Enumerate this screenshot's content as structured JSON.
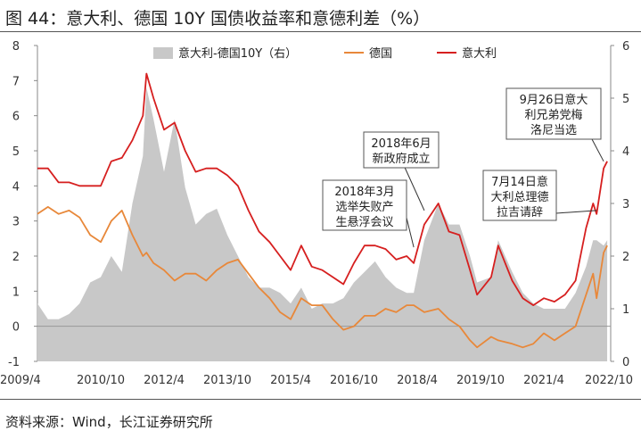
{
  "title": "图 44：意大利、德国 10Y 国债收益率和意德利差（%）",
  "source": "资料来源：Wind，长江证券研究所",
  "chart_data": {
    "type": "line",
    "title": "图 44：意大利、德国 10Y 国债收益率和意德利差（%）",
    "x_tick_labels": [
      "2009/4",
      "2010/10",
      "2012/4",
      "2013/10",
      "2015/4",
      "2016/10",
      "2018/4",
      "2019/10",
      "2021/4",
      "2022/10"
    ],
    "x_range": [
      "2009-04",
      "2022-11"
    ],
    "y_left": {
      "range": [
        -1,
        8
      ],
      "ticks": [
        -1,
        0,
        1,
        2,
        3,
        4,
        5,
        6,
        7,
        8
      ]
    },
    "y_right": {
      "range": [
        0,
        6
      ],
      "ticks": [
        0,
        1,
        2,
        3,
        4,
        5,
        6
      ]
    },
    "legend_position": "top",
    "grid": false,
    "x": [
      "2009-04",
      "2009-07",
      "2009-10",
      "2010-01",
      "2010-04",
      "2010-07",
      "2010-10",
      "2011-01",
      "2011-04",
      "2011-07",
      "2011-10",
      "2011-11",
      "2012-01",
      "2012-04",
      "2012-07",
      "2012-10",
      "2013-01",
      "2013-04",
      "2013-07",
      "2013-10",
      "2014-01",
      "2014-04",
      "2014-07",
      "2014-10",
      "2015-01",
      "2015-04",
      "2015-07",
      "2015-10",
      "2016-01",
      "2016-04",
      "2016-07",
      "2016-10",
      "2017-01",
      "2017-04",
      "2017-07",
      "2017-10",
      "2018-01",
      "2018-03",
      "2018-06",
      "2018-10",
      "2019-01",
      "2019-04",
      "2019-07",
      "2019-09",
      "2020-01",
      "2020-03",
      "2020-07",
      "2020-10",
      "2021-01",
      "2021-04",
      "2021-07",
      "2021-10",
      "2022-01",
      "2022-04",
      "2022-06",
      "2022-07",
      "2022-09",
      "2022-10"
    ],
    "series": [
      {
        "name": "意大利-德国10Y（右）",
        "axis": "right",
        "color": "#c8c8c8",
        "style": "area",
        "values": [
          1.1,
          0.8,
          0.8,
          0.9,
          1.1,
          1.5,
          1.6,
          2.0,
          1.7,
          3.0,
          3.9,
          5.2,
          4.6,
          3.6,
          4.6,
          3.3,
          2.6,
          2.8,
          2.9,
          2.4,
          2.0,
          1.6,
          1.4,
          1.4,
          1.3,
          1.1,
          1.4,
          1.0,
          1.1,
          1.1,
          1.2,
          1.5,
          1.7,
          1.9,
          1.6,
          1.4,
          1.3,
          1.3,
          2.3,
          3.0,
          2.6,
          2.6,
          2.0,
          1.5,
          1.6,
          2.3,
          1.7,
          1.3,
          1.1,
          1.0,
          1.0,
          1.0,
          1.3,
          1.8,
          2.3,
          2.3,
          2.2,
          2.3
        ]
      },
      {
        "name": "德国",
        "axis": "left",
        "color": "#e8883a",
        "style": "line",
        "values": [
          3.2,
          3.4,
          3.2,
          3.3,
          3.1,
          2.6,
          2.4,
          3.0,
          3.3,
          2.6,
          2.0,
          2.1,
          1.8,
          1.6,
          1.3,
          1.5,
          1.5,
          1.3,
          1.6,
          1.8,
          1.9,
          1.5,
          1.1,
          0.8,
          0.4,
          0.2,
          0.8,
          0.6,
          0.6,
          0.2,
          -0.1,
          0.0,
          0.3,
          0.3,
          0.5,
          0.4,
          0.6,
          0.6,
          0.4,
          0.5,
          0.2,
          0.0,
          -0.4,
          -0.6,
          -0.3,
          -0.4,
          -0.5,
          -0.6,
          -0.5,
          -0.2,
          -0.4,
          -0.2,
          0.0,
          0.9,
          1.5,
          0.8,
          2.1,
          2.3
        ]
      },
      {
        "name": "意大利",
        "axis": "left",
        "color": "#d61f1f",
        "style": "line",
        "values": [
          4.5,
          4.5,
          4.1,
          4.1,
          4.0,
          4.0,
          4.0,
          4.7,
          4.8,
          5.3,
          6.0,
          7.2,
          6.5,
          5.6,
          5.8,
          5.0,
          4.4,
          4.5,
          4.5,
          4.3,
          4.0,
          3.3,
          2.7,
          2.4,
          2.0,
          1.6,
          2.3,
          1.7,
          1.6,
          1.4,
          1.2,
          1.8,
          2.3,
          2.3,
          2.2,
          1.9,
          2.0,
          1.8,
          2.9,
          3.5,
          2.7,
          2.6,
          1.6,
          0.9,
          1.4,
          2.3,
          1.3,
          0.8,
          0.6,
          0.8,
          0.7,
          0.9,
          1.3,
          2.8,
          3.5,
          3.2,
          4.5,
          4.7
        ]
      }
    ],
    "annotations": [
      {
        "text": [
          "2018年3月",
          "选举失败产",
          "生悬浮会议"
        ],
        "x": "2018-03",
        "y": 2.2
      },
      {
        "text": [
          "2018年6月",
          "新政府成立"
        ],
        "x": "2018-06",
        "y": 3.2
      },
      {
        "text": [
          "7月14日意",
          "大利总理德",
          "拉吉请辞"
        ],
        "x": "2022-07",
        "y": 3.3
      },
      {
        "text": [
          "9月26日意大",
          "利兄弟党梅",
          "洛尼当选"
        ],
        "x": "2022-09",
        "y": 4.8
      }
    ]
  }
}
